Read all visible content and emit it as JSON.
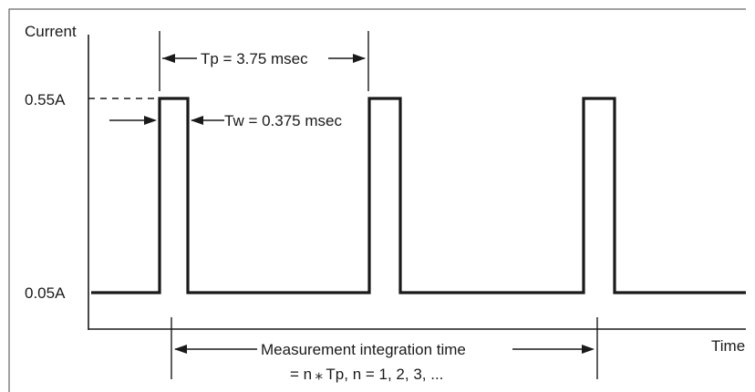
{
  "diagram": {
    "y_axis_label": "Current",
    "x_axis_label": "Time",
    "level_high_label": "0.55A",
    "level_low_label": "0.05A",
    "period_label": "Tp = 3.75 msec",
    "width_label": "Tw = 0.375 msec",
    "integration_label_line1": "Measurement integration time",
    "integration_label_line2": "= n ⁎ Tp,   n = 1, 2, 3, ..."
  }
}
